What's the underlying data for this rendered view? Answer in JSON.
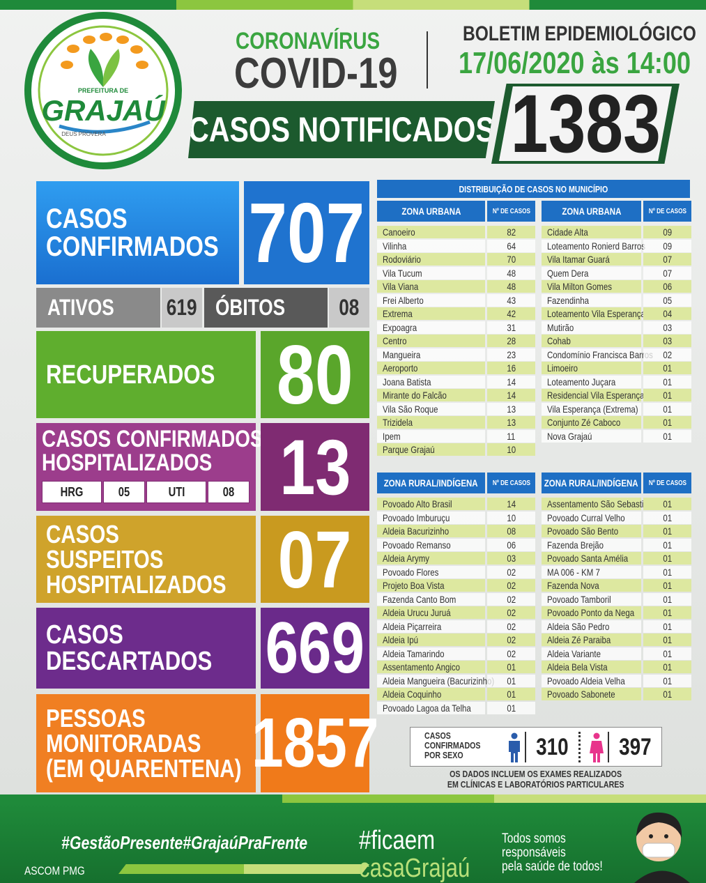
{
  "logo": {
    "top": "PREFEITURA DE",
    "name": "GRAJAÚ",
    "motto": "DEUS PROVERA"
  },
  "header": {
    "kicker": "CORONAVÍRUS",
    "title": "COVID-19",
    "bulletin": "BOLETIM EPIDEMIOLÓGICO",
    "date": "17/06/2020 às 14:00",
    "notified_label": "CASOS NOTIFICADOS",
    "notified_value": "1383"
  },
  "stats": {
    "confirmed": {
      "label": [
        "CASOS",
        "CONFIRMADOS"
      ],
      "value": "707"
    },
    "active": {
      "label": "ATIVOS",
      "value": "619"
    },
    "deaths": {
      "label": "ÓBITOS",
      "value": "08"
    },
    "recovered": {
      "label": [
        "RECUPERADOS"
      ],
      "value": "80"
    },
    "hospitalized": {
      "label": [
        "CASOS CONFIRMADOS",
        "HOSPITALIZADOS"
      ],
      "value": "13",
      "breakdown": [
        [
          "HRG",
          "05"
        ],
        [
          "UTI",
          "08"
        ]
      ]
    },
    "suspected": {
      "label": [
        "CASOS",
        "SUSPEITOS",
        "HOSPITALIZADOS"
      ],
      "value": "07"
    },
    "discarded": {
      "label": [
        "CASOS",
        "DESCARTADOS"
      ],
      "value": "669"
    },
    "monitored": {
      "label": [
        "PESSOAS",
        "MONITORADAS",
        "(EM QUARENTENA)"
      ],
      "value": "1857"
    }
  },
  "distribution": {
    "title": "DISTRIBUIÇÃO DE CASOS NO MUNICÍPIO",
    "tables": [
      {
        "header": [
          "ZONA URBANA",
          "Nº DE CASOS"
        ],
        "rows": [
          [
            "Canoeiro",
            "82"
          ],
          [
            "Vilinha",
            "64"
          ],
          [
            "Rodoviário",
            "70"
          ],
          [
            "Vila Tucum",
            "48"
          ],
          [
            "Vila Viana",
            "48"
          ],
          [
            "Frei Alberto",
            "43"
          ],
          [
            "Extrema",
            "42"
          ],
          [
            "Expoagra",
            "31"
          ],
          [
            "Centro",
            "28"
          ],
          [
            "Mangueira",
            "23"
          ],
          [
            "Aeroporto",
            "16"
          ],
          [
            "Joana Batista",
            "14"
          ],
          [
            "Mirante do Falcão",
            "14"
          ],
          [
            "Vila São Roque",
            "13"
          ],
          [
            "Trizidela",
            "13"
          ],
          [
            "Ipem",
            "11"
          ],
          [
            "Parque Grajaú",
            "10"
          ]
        ]
      },
      {
        "header": [
          "ZONA URBANA",
          "Nº DE CASOS"
        ],
        "rows": [
          [
            "Cidade Alta",
            "09"
          ],
          [
            "Loteamento Ronierd Barros",
            "09"
          ],
          [
            "Vila Itamar Guará",
            "07"
          ],
          [
            "Quem Dera",
            "07"
          ],
          [
            "Vila Milton Gomes",
            "06"
          ],
          [
            "Fazendinha",
            "05"
          ],
          [
            "Loteamento Vila Esperança",
            "04"
          ],
          [
            "Mutirão",
            "03"
          ],
          [
            "Cohab",
            "03"
          ],
          [
            "Condomínio Francisca Barros",
            "02"
          ],
          [
            "Limoeiro",
            "01"
          ],
          [
            "Loteamento Juçara",
            "01"
          ],
          [
            "Residencial Vila Esperança",
            "01"
          ],
          [
            "Vila Esperança (Extrema)",
            "01"
          ],
          [
            "Conjunto Zé Caboco",
            "01"
          ],
          [
            "Nova Grajaú",
            "01"
          ]
        ]
      },
      {
        "header": [
          "ZONA RURAL/INDÍGENA",
          "Nº DE CASOS"
        ],
        "rows": [
          [
            "Povoado Alto Brasil",
            "14"
          ],
          [
            "Povoado Imburuçu",
            "10"
          ],
          [
            "Aldeia Bacurizinho",
            "08"
          ],
          [
            "Povoado Remanso",
            "06"
          ],
          [
            "Aldeia Arymy",
            "03"
          ],
          [
            "Povoado Flores",
            "02"
          ],
          [
            "Projeto Boa Vista",
            "02"
          ],
          [
            "Fazenda Canto Bom",
            "02"
          ],
          [
            "Aldeia Urucu Juruá",
            "02"
          ],
          [
            "Aldeia Piçarreira",
            "02"
          ],
          [
            "Aldeia Ipú",
            "02"
          ],
          [
            "Aldeia Tamarindo",
            "02"
          ],
          [
            "Assentamento Angico",
            "01"
          ],
          [
            "Aldeia Mangueira (Bacurizinho)",
            "01"
          ],
          [
            "Aldeia Coquinho",
            "01"
          ],
          [
            "Povoado Lagoa da Telha",
            "01"
          ]
        ]
      },
      {
        "header": [
          "ZONA RURAL/INDÍGENA",
          "Nº DE CASOS"
        ],
        "rows": [
          [
            "Assentamento São Sebastião",
            "01"
          ],
          [
            "Povoado Curral Velho",
            "01"
          ],
          [
            "Povoado São Bento",
            "01"
          ],
          [
            "Fazenda Brejão",
            "01"
          ],
          [
            "Povoado Santa Amélia",
            "01"
          ],
          [
            "MA 006 - KM 7",
            "01"
          ],
          [
            "Fazenda Nova",
            "01"
          ],
          [
            "Povoado Tamboril",
            "01"
          ],
          [
            "Povoado Ponto da Nega",
            "01"
          ],
          [
            "Aldeia São Pedro",
            "01"
          ],
          [
            "Aldeia Zé Paraiba",
            "01"
          ],
          [
            "Aldeia Variante",
            "01"
          ],
          [
            "Aldeia Bela Vista",
            "01"
          ],
          [
            "Povoado Aldeia Velha",
            "01"
          ],
          [
            "Povoado Sabonete",
            "01"
          ]
        ]
      }
    ]
  },
  "sex": {
    "label": [
      "CASOS",
      "CONFIRMADOS",
      "POR SEXO"
    ],
    "male": "310",
    "female": "397"
  },
  "note": [
    "OS DADOS INCLUEM OS EXAMES REALIZADOS",
    "EM CLÍNICAS E LABORATÓRIOS PARTICULARES"
  ],
  "footer": {
    "hashtags": "#GestãoPresente#GrajaúPraFrente",
    "credit": "ASCOM PMG",
    "campaign": [
      "#ficaem",
      "casaGrajaú"
    ],
    "slogan": [
      "Todos somos",
      "responsáveis",
      "pela saúde de todos!"
    ]
  }
}
